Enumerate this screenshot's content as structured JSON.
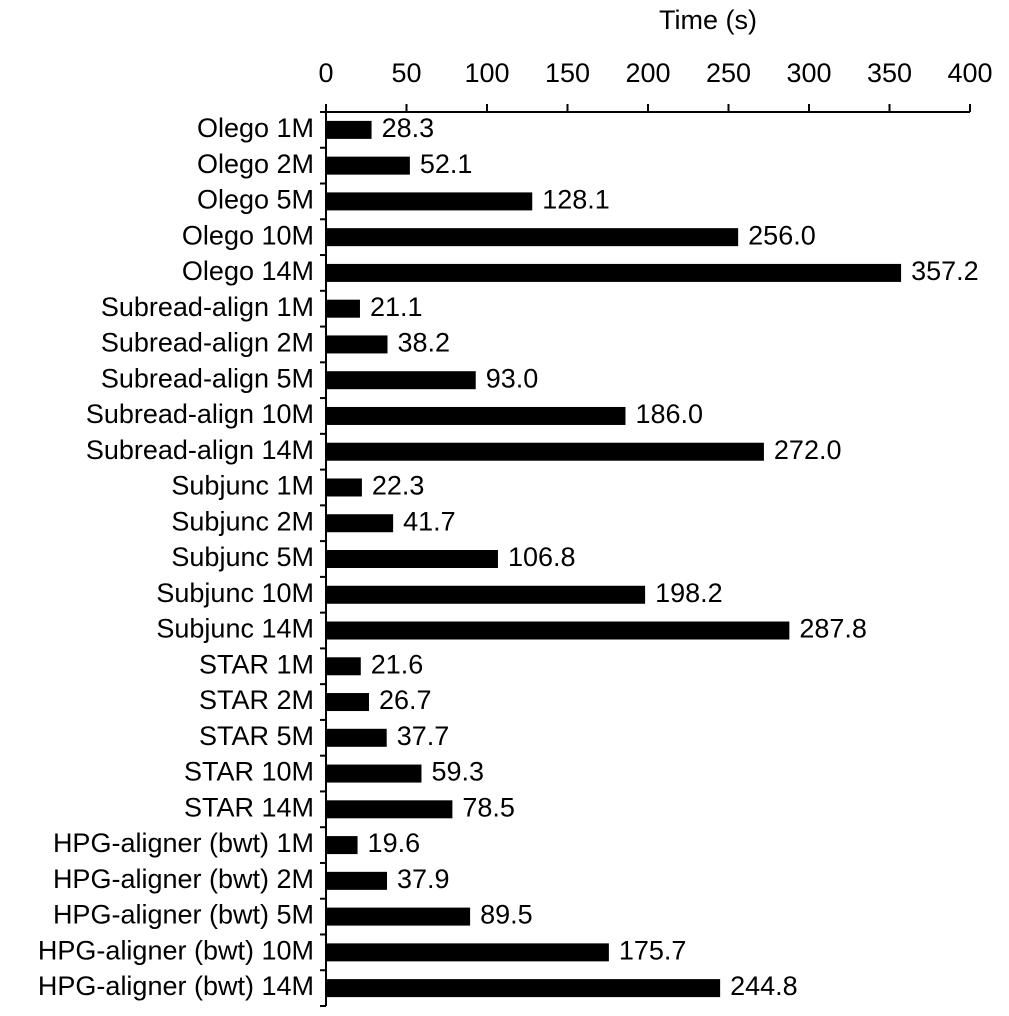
{
  "chart_data": {
    "type": "bar",
    "orientation": "horizontal",
    "x_label": "Time (s)",
    "categories": [
      "Olego 1M",
      "Olego 2M",
      "Olego 5M",
      "Olego 10M",
      "Olego 14M",
      "Subread-align 1M",
      "Subread-align 2M",
      "Subread-align 5M",
      "Subread-align 10M",
      "Subread-align 14M",
      "Subjunc 1M",
      "Subjunc 2M",
      "Subjunc 5M",
      "Subjunc 10M",
      "Subjunc 14M",
      "STAR 1M",
      "STAR 2M",
      "STAR 5M",
      "STAR 10M",
      "STAR 14M",
      "HPG-aligner (bwt) 1M",
      "HPG-aligner (bwt) 2M",
      "HPG-aligner (bwt) 5M",
      "HPG-aligner (bwt) 10M",
      "HPG-aligner (bwt) 14M"
    ],
    "values": [
      28.3,
      52.1,
      128.1,
      256,
      357.2,
      21.1,
      38.2,
      93,
      186,
      272,
      22.3,
      41.7,
      106.8,
      198.2,
      287.8,
      21.6,
      26.7,
      37.7,
      59.3,
      78.5,
      19.6,
      37.9,
      89.5,
      175.7,
      244.8
    ],
    "value_labels": [
      "28.3",
      "52.1",
      "128.1",
      "256.0",
      "357.2",
      "21.1",
      "38.2",
      "93.0",
      "186.0",
      "272.0",
      "22.3",
      "41.7",
      "106.8",
      "198.2",
      "287.8",
      "21.6",
      "26.7",
      "37.7",
      "59.3",
      "78.5",
      "19.6",
      "37.9",
      "89.5",
      "175.7",
      "244.8"
    ],
    "color": "#000000",
    "xlim": [
      0,
      400
    ],
    "xticks": [
      0,
      50,
      100,
      150,
      200,
      250,
      300,
      350,
      400
    ]
  }
}
